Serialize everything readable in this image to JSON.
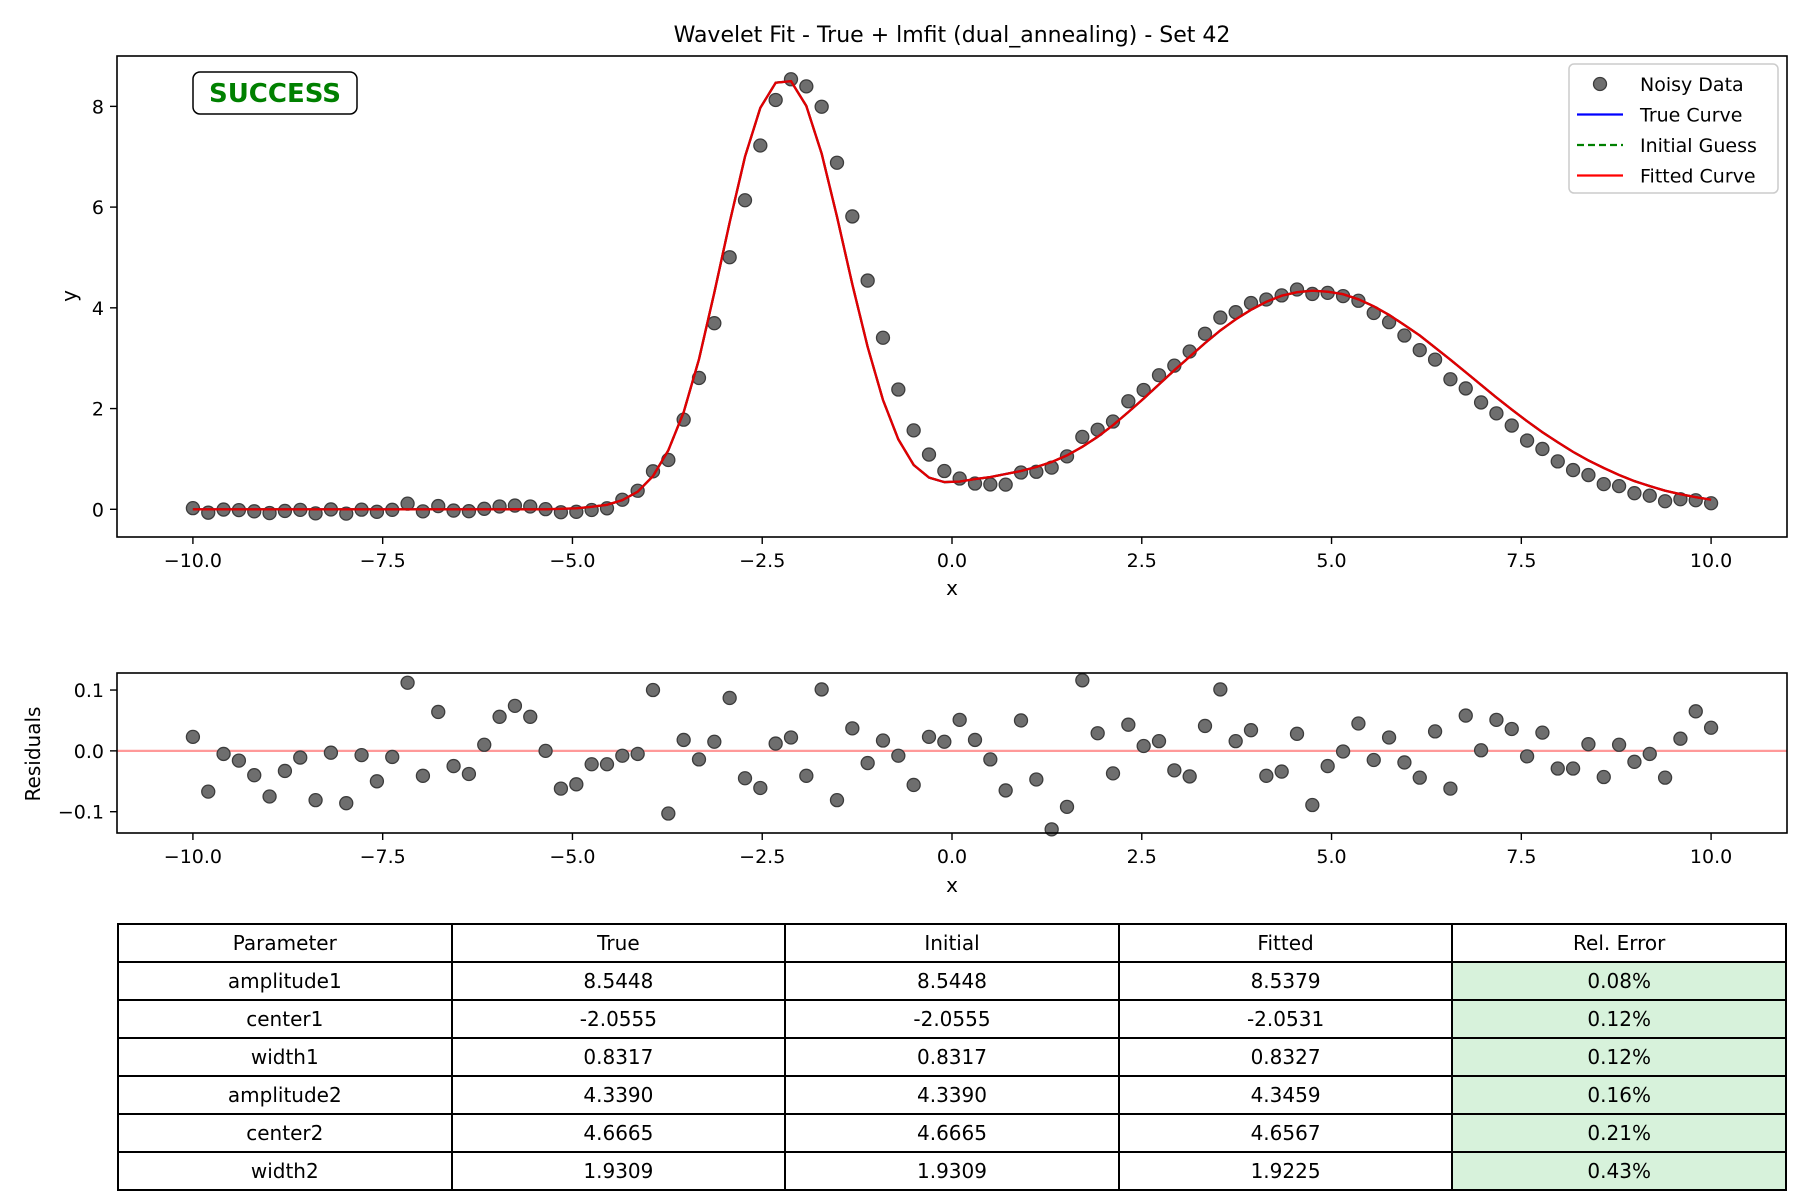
{
  "chart_data": [
    {
      "type": "scatter",
      "title": "Wavelet Fit - True + lmfit (dual_annealing) - Set 42",
      "xlabel": "x",
      "ylabel": "y",
      "xlim": [
        -11.0,
        11.0
      ],
      "ylim": [
        -0.55,
        9.0
      ],
      "xticks": [
        -10.0,
        -7.5,
        -5.0,
        -2.5,
        0.0,
        2.5,
        5.0,
        7.5,
        10.0
      ],
      "xtick_labels": [
        "−10.0",
        "−7.5",
        "−5.0",
        "−2.5",
        "0.0",
        "2.5",
        "5.0",
        "7.5",
        "10.0"
      ],
      "yticks": [
        0,
        2,
        4,
        6,
        8
      ],
      "ytick_labels": [
        "0",
        "2",
        "4",
        "6",
        "8"
      ],
      "grid": false,
      "legend_placement": "upper-right",
      "annotation": {
        "text": "SUCCESS",
        "color": "#008000"
      },
      "legend": [
        {
          "name": "Noisy Data",
          "kind": "marker",
          "color": "#555555"
        },
        {
          "name": "True Curve",
          "kind": "line",
          "color": "#0000ff"
        },
        {
          "name": "Initial Guess",
          "kind": "dashed",
          "color": "#008000"
        },
        {
          "name": "Fitted Curve",
          "kind": "line",
          "color": "#ff0000"
        }
      ],
      "x": [
        -10.0,
        -9.798,
        -9.596,
        -9.394,
        -9.192,
        -8.99,
        -8.788,
        -8.586,
        -8.384,
        -8.182,
        -7.98,
        -7.778,
        -7.576,
        -7.374,
        -7.172,
        -6.97,
        -6.768,
        -6.566,
        -6.364,
        -6.162,
        -5.96,
        -5.758,
        -5.556,
        -5.354,
        -5.152,
        -4.949,
        -4.747,
        -4.545,
        -4.343,
        -4.141,
        -3.939,
        -3.737,
        -3.535,
        -3.333,
        -3.131,
        -2.929,
        -2.727,
        -2.525,
        -2.323,
        -2.121,
        -1.919,
        -1.717,
        -1.515,
        -1.313,
        -1.111,
        -0.909,
        -0.707,
        -0.505,
        -0.303,
        -0.101,
        0.101,
        0.303,
        0.505,
        0.707,
        0.909,
        1.111,
        1.313,
        1.515,
        1.717,
        1.919,
        2.121,
        2.323,
        2.525,
        2.727,
        2.929,
        3.131,
        3.333,
        3.535,
        3.737,
        3.939,
        4.141,
        4.343,
        4.545,
        4.747,
        4.949,
        5.152,
        5.354,
        5.556,
        5.758,
        5.96,
        6.162,
        6.364,
        6.566,
        6.768,
        6.97,
        7.172,
        7.374,
        7.576,
        7.778,
        7.98,
        8.182,
        8.384,
        8.586,
        8.788,
        8.99,
        9.192,
        9.394,
        9.596,
        9.798,
        10.0
      ],
      "series": [
        {
          "name": "Noisy Data",
          "values": [
            0.023,
            -0.067,
            -0.005,
            -0.016,
            -0.04,
            -0.075,
            -0.033,
            -0.011,
            -0.081,
            -0.003,
            -0.086,
            -0.007,
            -0.05,
            -0.01,
            0.112,
            -0.041,
            0.064,
            -0.025,
            -0.038,
            0.01,
            0.056,
            0.074,
            0.056,
            0.003,
            -0.058,
            -0.05,
            -0.014,
            0.02,
            0.19,
            0.368,
            0.754,
            0.98,
            1.78,
            2.608,
            3.695,
            5.005,
            6.136,
            7.223,
            8.127,
            8.538,
            8.397,
            7.993,
            6.881,
            5.815,
            4.541,
            3.406,
            2.378,
            1.567,
            1.087,
            0.76,
            0.611,
            0.512,
            0.494,
            0.49,
            0.73,
            0.745,
            0.828,
            1.051,
            1.438,
            1.58,
            1.743,
            2.145,
            2.369,
            2.661,
            2.852,
            3.133,
            3.486,
            3.807,
            3.914,
            4.095,
            4.166,
            4.247,
            4.364,
            4.276,
            4.297,
            4.233,
            4.14,
            3.898,
            3.716,
            3.45,
            3.161,
            2.972,
            2.582,
            2.4,
            2.122,
            1.905,
            1.663,
            1.365,
            1.198,
            0.951,
            0.779,
            0.68,
            0.5,
            0.46,
            0.32,
            0.27,
            0.16,
            0.2,
            0.18,
            0.12
          ]
        },
        {
          "name": "Fitted Curve",
          "values": [
            0.0,
            0.0,
            0.0,
            0.0,
            0.0,
            0.0,
            0.0,
            0.0,
            0.0,
            0.0,
            0.0,
            0.0,
            0.0,
            0.0,
            0.0,
            0.0,
            0.0,
            0.0,
            0.0,
            0.0,
            0.0,
            0.0,
            0.0,
            0.0,
            0.01,
            0.02,
            0.05,
            0.09,
            0.18,
            0.35,
            0.66,
            1.17,
            1.93,
            2.98,
            4.3,
            5.7,
            7.0,
            7.97,
            8.47,
            8.5,
            8.01,
            7.06,
            5.81,
            4.47,
            3.22,
            2.17,
            1.39,
            0.88,
            0.63,
            0.54,
            0.55,
            0.6,
            0.64,
            0.7,
            0.76,
            0.84,
            0.94,
            1.07,
            1.24,
            1.44,
            1.67,
            1.93,
            2.2,
            2.48,
            2.76,
            3.03,
            3.3,
            3.55,
            3.77,
            3.96,
            4.12,
            4.24,
            4.31,
            4.34,
            4.32,
            4.27,
            4.17,
            4.03,
            3.86,
            3.66,
            3.45,
            3.21,
            2.97,
            2.72,
            2.47,
            2.22,
            1.98,
            1.75,
            1.53,
            1.33,
            1.14,
            0.97,
            0.82,
            0.68,
            0.56,
            0.46,
            0.37,
            0.3,
            0.24,
            0.19
          ]
        }
      ]
    },
    {
      "type": "scatter",
      "title": "",
      "xlabel": "x",
      "ylabel": "Residuals",
      "xlim": [
        -11.0,
        11.0
      ],
      "ylim": [
        -0.135,
        0.128
      ],
      "xticks": [
        -10.0,
        -7.5,
        -5.0,
        -2.5,
        0.0,
        2.5,
        5.0,
        7.5,
        10.0
      ],
      "xtick_labels": [
        "−10.0",
        "−7.5",
        "−5.0",
        "−2.5",
        "0.0",
        "2.5",
        "5.0",
        "7.5",
        "10.0"
      ],
      "yticks": [
        -0.1,
        0.0,
        0.1
      ],
      "ytick_labels": [
        "−0.1",
        "0.0",
        "0.1"
      ],
      "grid": false,
      "zero_line_color": "#ff9999",
      "series": [
        {
          "name": "Residuals",
          "values": [
            0.023,
            -0.067,
            -0.005,
            -0.016,
            -0.04,
            -0.075,
            -0.033,
            -0.011,
            -0.081,
            -0.003,
            -0.086,
            -0.007,
            -0.05,
            -0.01,
            0.112,
            -0.041,
            0.064,
            -0.025,
            -0.038,
            0.01,
            0.056,
            0.074,
            0.056,
            0.0,
            -0.062,
            -0.055,
            -0.022,
            -0.022,
            -0.008,
            -0.005,
            0.1,
            -0.103,
            0.018,
            -0.014,
            0.015,
            0.087,
            -0.045,
            -0.061,
            0.012,
            0.022,
            -0.041,
            0.101,
            -0.081,
            0.037,
            -0.02,
            0.017,
            -0.008,
            -0.056,
            0.023,
            0.015,
            0.051,
            0.018,
            -0.014,
            -0.065,
            0.05,
            -0.047,
            -0.129,
            -0.092,
            0.116,
            0.029,
            -0.037,
            0.043,
            0.008,
            0.016,
            -0.032,
            -0.042,
            0.041,
            0.101,
            0.016,
            0.034,
            -0.041,
            -0.034,
            0.028,
            -0.089,
            -0.025,
            -0.001,
            0.045,
            -0.015,
            0.022,
            -0.019,
            -0.044,
            0.032,
            -0.062,
            0.058,
            0.001,
            0.051,
            0.036,
            -0.009,
            0.03,
            -0.029,
            -0.029,
            0.011,
            -0.043,
            0.01,
            -0.018,
            -0.005,
            -0.044,
            0.02,
            0.065,
            0.038
          ]
        }
      ]
    }
  ],
  "table": {
    "headers": [
      "Parameter",
      "True",
      "Initial",
      "Fitted",
      "Rel. Error"
    ],
    "rows": [
      [
        "amplitude1",
        "8.5448",
        "8.5448",
        "8.5379",
        "0.08%"
      ],
      [
        "center1",
        "-2.0555",
        "-2.0555",
        "-2.0531",
        "0.12%"
      ],
      [
        "width1",
        "0.8317",
        "0.8317",
        "0.8327",
        "0.12%"
      ],
      [
        "amplitude2",
        "4.3390",
        "4.3390",
        "4.3459",
        "0.16%"
      ],
      [
        "center2",
        "4.6665",
        "4.6665",
        "4.6567",
        "0.21%"
      ],
      [
        "width2",
        "1.9309",
        "1.9309",
        "1.9225",
        "0.43%"
      ]
    ],
    "error_cell_color": "#d7f2db"
  }
}
